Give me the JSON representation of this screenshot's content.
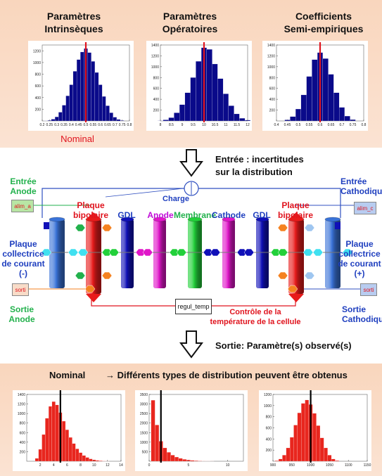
{
  "top": {
    "headers": [
      {
        "line1": "Paramètres",
        "line2": "Intrinsèques"
      },
      {
        "line1": "Paramètres",
        "line2": "Opératoires"
      },
      {
        "line1": "Coefficients",
        "line2": "Semi-empiriques"
      }
    ],
    "nominal_label": "Nominal"
  },
  "flow": {
    "input_line1": "Entrée : incertitudes",
    "input_line2": "sur la distribution",
    "output": "Sortie: Paramètre(s) observé(s)"
  },
  "diagram": {
    "entree_anode": [
      "Entrée",
      "Anode"
    ],
    "entree_cathode": [
      "Entrée",
      "Cathodique"
    ],
    "alim_a": "alim_a",
    "alim_c": "alim_c",
    "charge": "Charge",
    "plaque_bipolaire_left": [
      "Plaque",
      "bipolaire"
    ],
    "plaque_bipolaire_right": [
      "Plaque",
      "bipolaire"
    ],
    "gdl_left": "GDL",
    "anode": "Anode",
    "membrane": "Membrane",
    "cathode": "Cathode",
    "gdl_right": "GDL",
    "collectrice_left": [
      "Plaque",
      "collectrice",
      "de courant",
      "(-)"
    ],
    "collectrice_right": [
      "Plaque",
      "collectrice",
      "de courant",
      "(+)"
    ],
    "sortie_anode": [
      "Sortie",
      "Anode"
    ],
    "sortie_cathode": [
      "Sortie",
      "Cathodique"
    ],
    "sorti_box": "sorti",
    "regul_temp": "regul_temp",
    "controle": [
      "Contrôle de la",
      "température de la cellule"
    ]
  },
  "bottom": {
    "nominal_label": "Nominal",
    "distribution_note": "→ Différents types de distribution peuvent être obtenus"
  },
  "colors": {
    "band": "#f9d6bd",
    "navy": "#0a0a8a",
    "bar_red": "#e8261e",
    "nominal_line": "#e0141e"
  },
  "chart_data": [
    {
      "type": "bar",
      "x": [
        0.225,
        0.25,
        0.275,
        0.3,
        0.325,
        0.35,
        0.375,
        0.4,
        0.425,
        0.45,
        0.475,
        0.5,
        0.525,
        0.55,
        0.575,
        0.6,
        0.625,
        0.65,
        0.675,
        0.7,
        0.725,
        0.75
      ],
      "values": [
        3,
        10,
        30,
        70,
        150,
        270,
        430,
        620,
        850,
        1050,
        1180,
        1240,
        1170,
        1020,
        830,
        620,
        420,
        260,
        140,
        65,
        25,
        8
      ],
      "xlim": [
        0.2,
        0.8
      ],
      "ylim": [
        0,
        1300
      ],
      "yticks": [
        200,
        400,
        600,
        800,
        1000,
        1200
      ],
      "xticks": [
        0.2,
        0.25,
        0.3,
        0.35,
        0.4,
        0.45,
        0.5,
        0.55,
        0.6,
        0.65,
        0.7,
        0.75,
        0.8
      ],
      "xtick_labels": [
        "0.2",
        "0.25",
        "0.3",
        "0.35",
        "0.4",
        "0.45",
        "0.5",
        "0.55",
        "0.6",
        "0.65",
        "0.7",
        "0.75",
        "0.8"
      ],
      "nominal_x": 0.5,
      "color": "#0a0a8a"
    },
    {
      "type": "bar",
      "x": [
        8.0,
        8.25,
        8.5,
        8.75,
        9.0,
        9.25,
        9.5,
        9.75,
        10.0,
        10.25,
        10.5,
        10.75,
        11.0,
        11.25,
        11.5,
        11.75,
        12.0
      ],
      "values": [
        5,
        20,
        60,
        150,
        300,
        520,
        800,
        1100,
        1350,
        1320,
        1050,
        780,
        500,
        280,
        130,
        50,
        15
      ],
      "xlim": [
        8,
        12
      ],
      "ylim": [
        0,
        1400
      ],
      "yticks": [
        200,
        400,
        600,
        800,
        1000,
        1200,
        1400
      ],
      "xticks": [
        8,
        8.5,
        9,
        9.5,
        10,
        10.5,
        11,
        11.5,
        12
      ],
      "xtick_labels": [
        "8",
        "8.5",
        "9",
        "9.5",
        "10",
        "10.5",
        "11",
        "11.5",
        "12"
      ],
      "nominal_x": 10,
      "color": "#0a0a8a"
    },
    {
      "type": "bar",
      "x": [
        0.45,
        0.475,
        0.5,
        0.525,
        0.55,
        0.575,
        0.6,
        0.625,
        0.65,
        0.675,
        0.7,
        0.725,
        0.75
      ],
      "values": [
        20,
        80,
        220,
        480,
        820,
        1130,
        1260,
        1150,
        860,
        520,
        250,
        90,
        25
      ],
      "xlim": [
        0.4,
        0.8
      ],
      "ylim": [
        0,
        1400
      ],
      "yticks": [
        200,
        400,
        600,
        800,
        1000,
        1200,
        1400
      ],
      "xticks": [
        0.4,
        0.45,
        0.5,
        0.55,
        0.6,
        0.65,
        0.7,
        0.75,
        0.8
      ],
      "xtick_labels": [
        "0.4",
        "0.45",
        "0.5",
        "0.55",
        "0.6",
        "0.65",
        "0.7",
        "0.75",
        "0.8"
      ],
      "nominal_x": 0.6,
      "color": "#0a0a8a"
    },
    {
      "type": "bar",
      "x": [
        1.5,
        2,
        2.5,
        3,
        3.5,
        4,
        4.5,
        5,
        5.5,
        6,
        6.5,
        7,
        7.5,
        8,
        8.5,
        9,
        9.5,
        10,
        10.5,
        11,
        11.5,
        12
      ],
      "values": [
        60,
        250,
        560,
        900,
        1150,
        1250,
        1180,
        1020,
        840,
        660,
        500,
        370,
        260,
        180,
        120,
        80,
        50,
        30,
        18,
        10,
        6,
        3
      ],
      "xlim": [
        0,
        14
      ],
      "ylim": [
        0,
        1400
      ],
      "yticks": [
        200,
        400,
        600,
        800,
        1000,
        1200,
        1400
      ],
      "xticks": [
        2,
        4,
        6,
        8,
        10,
        12,
        14
      ],
      "xtick_labels": [
        "2",
        "4",
        "6",
        "8",
        "10",
        "12",
        "14"
      ],
      "nominal_x": 5,
      "color": "#e8261e"
    },
    {
      "type": "bar",
      "x": [
        0.5,
        1,
        1.5,
        2,
        2.5,
        3,
        3.5,
        4,
        4.5,
        5,
        5.5,
        6,
        6.5,
        7,
        7.5,
        8
      ],
      "values": [
        3200,
        1900,
        1050,
        700,
        470,
        320,
        220,
        150,
        100,
        70,
        45,
        30,
        18,
        10,
        6,
        3
      ],
      "xlim": [
        0,
        12
      ],
      "ylim": [
        0,
        3500
      ],
      "yticks": [
        500,
        1000,
        1500,
        2000,
        2500,
        3000,
        3500
      ],
      "xticks": [
        0,
        5,
        10
      ],
      "xtick_labels": [
        "0",
        "5",
        "10"
      ],
      "nominal_x": 1.5,
      "color": "#e8261e"
    },
    {
      "type": "bar",
      "x": [
        910,
        920,
        930,
        940,
        950,
        960,
        970,
        980,
        990,
        1000,
        1010,
        1020,
        1030,
        1040,
        1050,
        1060,
        1070
      ],
      "values": [
        10,
        40,
        110,
        240,
        430,
        650,
        870,
        1040,
        1100,
        1020,
        860,
        640,
        420,
        240,
        110,
        40,
        12
      ],
      "xlim": [
        900,
        1150
      ],
      "ylim": [
        0,
        1200
      ],
      "yticks": [
        200,
        400,
        600,
        800,
        1000,
        1200
      ],
      "xticks": [
        900,
        950,
        1000,
        1050,
        1100,
        1150
      ],
      "xtick_labels": [
        "900",
        "950",
        "1000",
        "1050",
        "1100",
        "1150"
      ],
      "nominal_x": 1000,
      "color": "#e8261e"
    }
  ]
}
